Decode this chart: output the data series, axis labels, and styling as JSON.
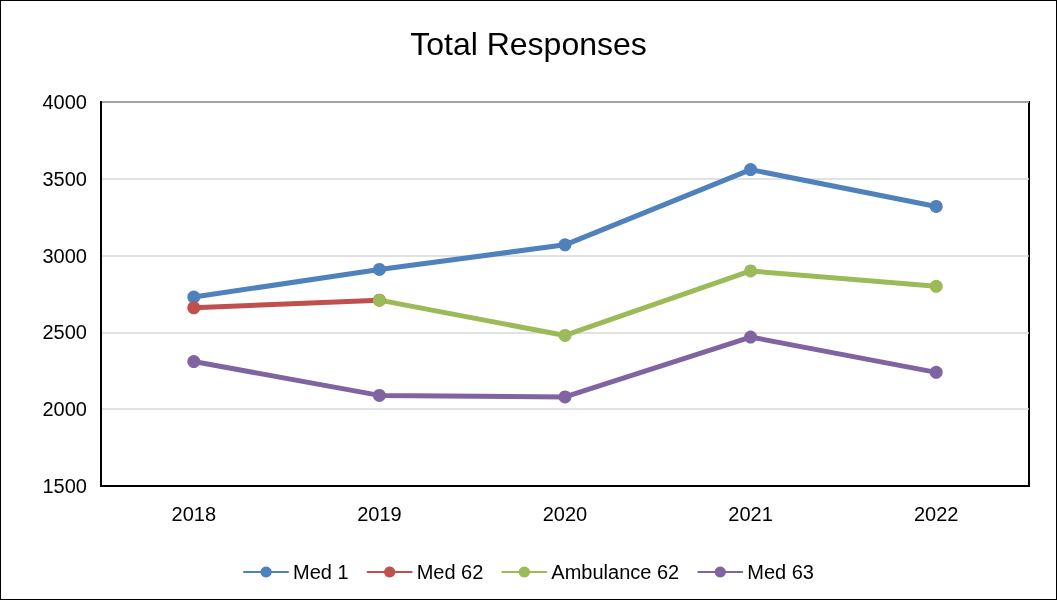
{
  "chart_data": {
    "type": "line",
    "title": "Total Responses",
    "categories": [
      "2018",
      "2019",
      "2020",
      "2021",
      "2022"
    ],
    "series": [
      {
        "name": "Med 1",
        "color": "#4f81bd",
        "values": [
          2730,
          2910,
          3070,
          3560,
          3320
        ]
      },
      {
        "name": "Med 62",
        "color": "#c0504d",
        "values": [
          2660,
          2710,
          null,
          null,
          null
        ]
      },
      {
        "name": "Ambulance 62",
        "color": "#9bbb59",
        "values": [
          null,
          2710,
          2480,
          2900,
          2800
        ]
      },
      {
        "name": "Med 63",
        "color": "#8064a2",
        "values": [
          2310,
          2090,
          2080,
          2470,
          2240
        ]
      }
    ],
    "ylim": [
      1500,
      4000
    ],
    "yticks": [
      1500,
      2000,
      2500,
      3000,
      3500,
      4000
    ],
    "grid": "y",
    "legend": "bottom",
    "marker": "circle",
    "line_style": "solid"
  }
}
